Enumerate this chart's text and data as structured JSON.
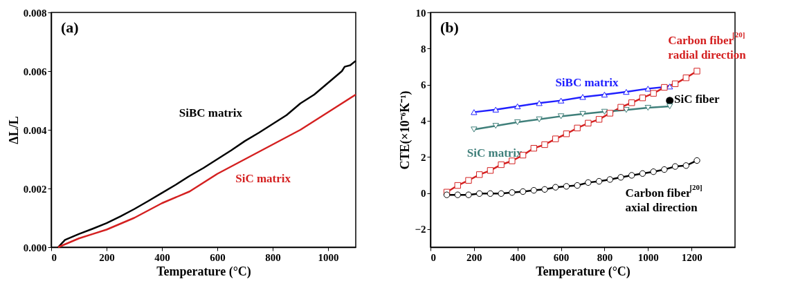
{
  "chart_data": [
    {
      "type": "line",
      "xlabel": "Temperature (°C)",
      "ylabel": "ΔL/L",
      "annotations": [
        "(a)"
      ],
      "xlim": [
        0,
        1100
      ],
      "xticks": [
        0,
        200,
        400,
        600,
        800,
        1000
      ],
      "ylim": [
        0,
        0.008
      ],
      "yticks": [
        {
          "value": 0,
          "label": "0.000"
        },
        {
          "value": 0.002,
          "label": "0.002"
        },
        {
          "value": 0.004,
          "label": "0.004"
        },
        {
          "value": 0.006,
          "label": "0.006"
        },
        {
          "value": 0.008,
          "label": "0.008"
        }
      ],
      "marker": "none",
      "series": [
        {
          "name": "SiBC matrix",
          "color": "#000000",
          "x": [
            25,
            50,
            100,
            150,
            200,
            250,
            300,
            350,
            400,
            450,
            500,
            550,
            600,
            650,
            700,
            750,
            800,
            850,
            875,
            900,
            950,
            1000,
            1050,
            1060,
            1080,
            1100
          ],
          "values": [
            0,
            0.00025,
            0.00045,
            0.00063,
            0.00082,
            0.00105,
            0.0013,
            0.00157,
            0.00185,
            0.00213,
            0.00243,
            0.0027,
            0.003,
            0.0033,
            0.00362,
            0.0039,
            0.0042,
            0.0045,
            0.0047,
            0.0049,
            0.0052,
            0.0056,
            0.006,
            0.00615,
            0.0062,
            0.00635
          ]
        },
        {
          "name": "SiC matrix",
          "color": "#d42020",
          "x": [
            25,
            100,
            150,
            200,
            300,
            400,
            500,
            600,
            700,
            800,
            900,
            1000,
            1100
          ],
          "values": [
            0,
            0.0003,
            0.00045,
            0.0006,
            0.001,
            0.0015,
            0.0019,
            0.0025,
            0.003,
            0.0035,
            0.004,
            0.0046,
            0.0052
          ]
        }
      ]
    },
    {
      "type": "line",
      "xlabel": "Temperature (°C)",
      "ylabel": "CTE(×10⁻⁶K⁻¹)",
      "annotations": [
        "(b)"
      ],
      "xlim": [
        0,
        1400
      ],
      "xticks": [
        0,
        200,
        400,
        600,
        800,
        1000,
        1200
      ],
      "ylim": [
        -3,
        10
      ],
      "yticks": [
        -2,
        0,
        2,
        4,
        6,
        8,
        10
      ],
      "series": [
        {
          "name": "Carbon fiber$^{[20]}$ axial direction",
          "color": "#000000",
          "marker": "circle",
          "x": [
            75,
            125,
            175,
            225,
            275,
            325,
            375,
            425,
            475,
            525,
            575,
            625,
            675,
            725,
            775,
            825,
            875,
            925,
            975,
            1025,
            1075,
            1125,
            1175,
            1225
          ],
          "values": [
            -0.1,
            -0.1,
            -0.1,
            -0.03,
            -0.03,
            -0.03,
            0.03,
            0.08,
            0.15,
            0.2,
            0.32,
            0.37,
            0.42,
            0.58,
            0.65,
            0.75,
            0.87,
            0.98,
            1.08,
            1.18,
            1.3,
            1.47,
            1.52,
            1.8
          ]
        },
        {
          "name": "Carbon fiber$^{[20]}$ radial direction",
          "color": "#d42020",
          "marker": "square",
          "x": [
            75,
            125,
            175,
            225,
            275,
            325,
            375,
            425,
            475,
            525,
            575,
            625,
            675,
            725,
            775,
            825,
            875,
            925,
            975,
            1025,
            1075,
            1125,
            1175,
            1225
          ],
          "values": [
            0.05,
            0.42,
            0.7,
            1.02,
            1.25,
            1.57,
            1.78,
            2.1,
            2.48,
            2.68,
            3.0,
            3.28,
            3.6,
            3.87,
            4.08,
            4.42,
            4.75,
            5.0,
            5.27,
            5.52,
            5.85,
            6.05,
            6.38,
            6.75
          ]
        },
        {
          "name": "SiBC matrix",
          "color": "#2020ff",
          "marker": "triangle",
          "x": [
            200,
            300,
            400,
            500,
            600,
            700,
            800,
            900,
            1000,
            1100
          ],
          "values": [
            4.48,
            4.62,
            4.8,
            4.98,
            5.12,
            5.32,
            5.45,
            5.6,
            5.78,
            5.9
          ]
        },
        {
          "name": "SiC matrix",
          "color": "#3f7f7a",
          "marker": "triangle-down",
          "x": [
            200,
            300,
            400,
            500,
            600,
            700,
            800,
            900,
            1000,
            1100
          ],
          "values": [
            3.52,
            3.72,
            3.92,
            4.08,
            4.25,
            4.38,
            4.5,
            4.6,
            4.72,
            4.8
          ]
        },
        {
          "name": "SiC fiber",
          "type": "scatter",
          "color": "#000000",
          "marker": "circle",
          "x": [
            1100
          ],
          "values": [
            5.12
          ]
        }
      ]
    }
  ]
}
